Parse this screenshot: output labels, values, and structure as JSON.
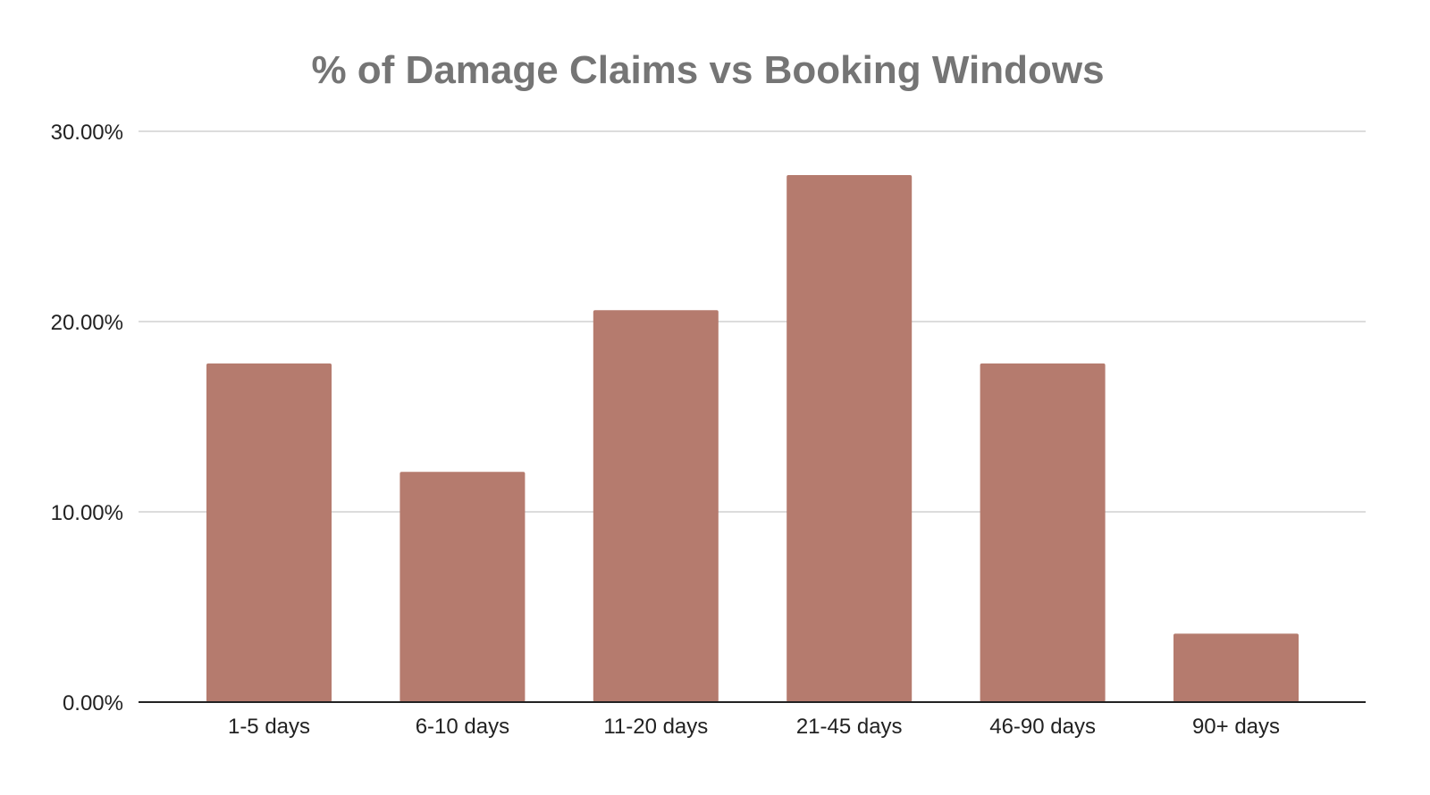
{
  "chart_data": {
    "type": "bar",
    "title": "% of Damage Claims vs Booking Windows",
    "xlabel": "",
    "ylabel": "",
    "categories": [
      "1-5 days",
      "6-10 days",
      "11-20 days",
      "21-45 days",
      "46-90 days",
      "90+ days"
    ],
    "values": [
      17.8,
      12.1,
      20.6,
      27.7,
      17.8,
      3.6
    ],
    "ylim": [
      0,
      30
    ],
    "yticks": [
      0,
      10,
      20,
      30
    ],
    "ytick_labels": [
      "0.00%",
      "10.00%",
      "20.00%",
      "30.00%"
    ],
    "grid": true,
    "legend": "none",
    "colors": {
      "bar": "#b57b6e",
      "grid": "#d0d0d0",
      "axis": "#222222"
    }
  }
}
